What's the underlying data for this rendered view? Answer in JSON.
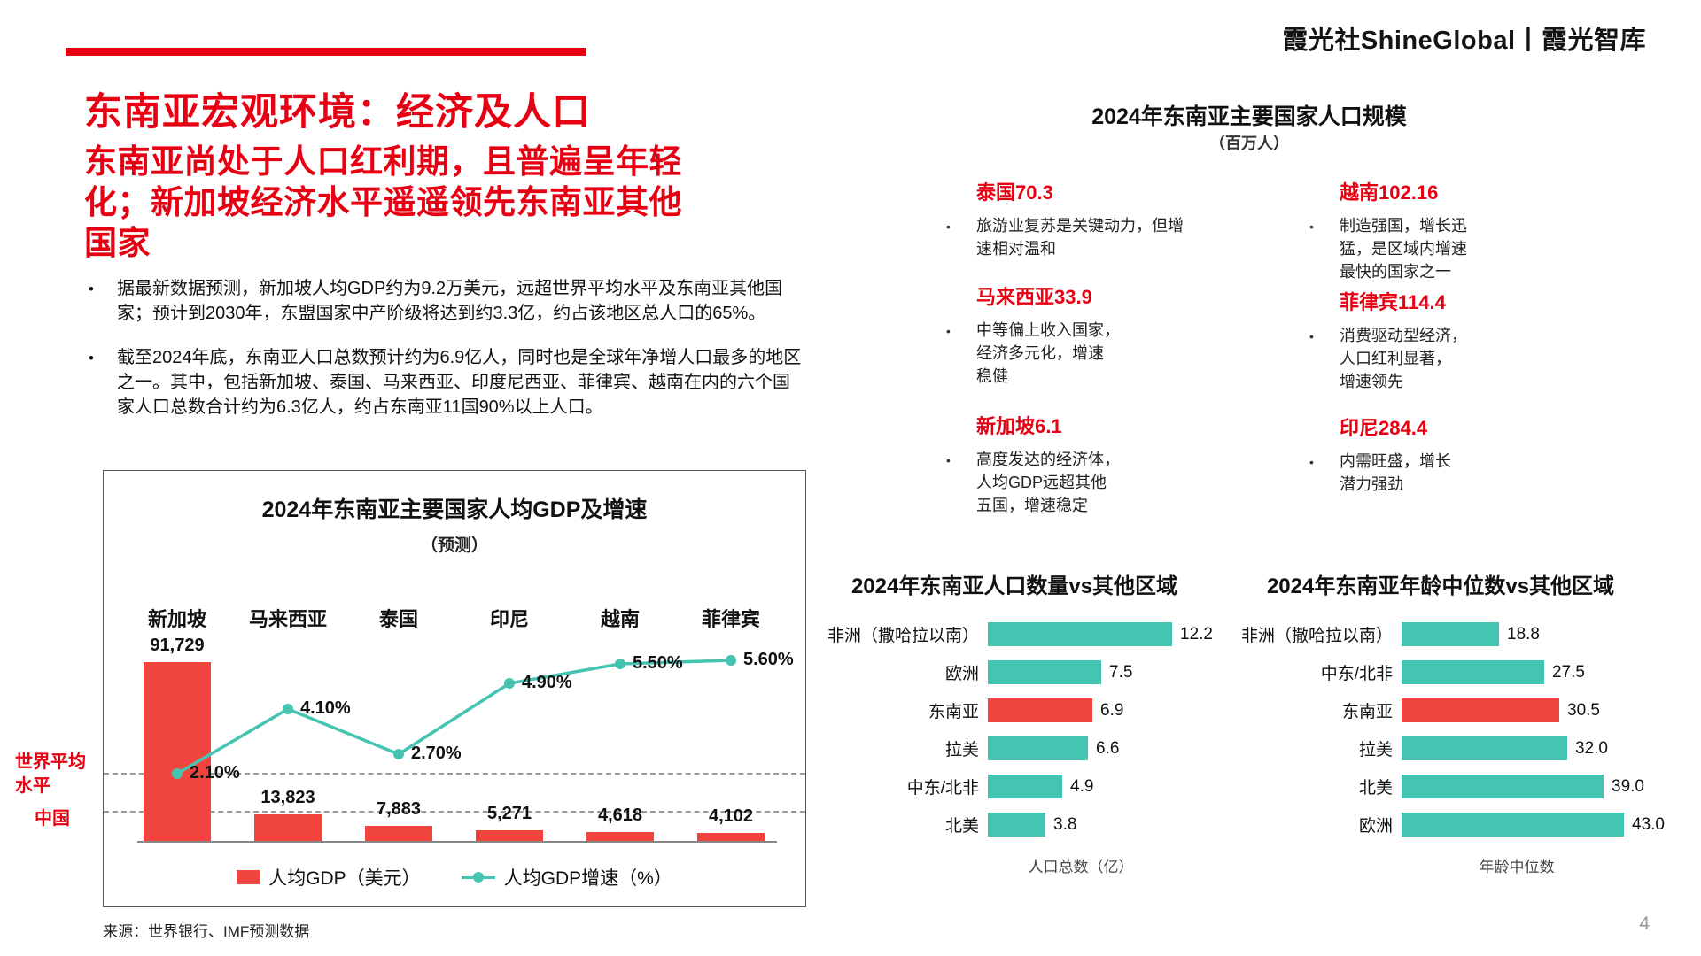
{
  "ui": {
    "bullet_char": "•"
  },
  "colors": {
    "accent_red": "#e60012",
    "bar_red": "#f0453f",
    "teal": "#45c4b2",
    "dash_gray": "#999999"
  },
  "brand": {
    "logo_text": "霞光社ShineGlobal丨霞光智库"
  },
  "page_number": "4",
  "source": "来源：世界银行、IMF预测数据",
  "header": {
    "title": "东南亚宏观环境：经济及人口",
    "subtitle": "东南亚尚处于人口红利期，且普遍呈年轻化；新加坡经济水平遥遥领先东南亚其他国家",
    "bullets": [
      "据最新数据预测，新加坡人均GDP约为9.2万美元，远超世界平均水平及东南亚其他国家；预计到2030年，东盟国家中产阶级将达到约3.3亿，约占该地区总人口的65%。",
      "截至2024年底，东南亚人口总数预计约为6.9亿人，同时也是全球年净增人口最多的地区之一。其中，包括新加坡、泰国、马来西亚、印度尼西亚、菲律宾、越南在内的六个国家人口总数合计约为6.3亿人，约占东南亚11国90%以上人口。"
    ]
  },
  "population_panel": {
    "title": "2024年东南亚主要国家人口规模",
    "unit": "（百万人）",
    "entries": [
      {
        "name": "泰国",
        "value": "70.3",
        "desc": "旅游业复苏是关键动力，但增\n速相对温和"
      },
      {
        "name": "马来西亚",
        "value": "33.9",
        "desc": "中等偏上收入国家，\n经济多元化，增速\n稳健"
      },
      {
        "name": "新加坡",
        "value": "6.1",
        "desc": "高度发达的经济体，\n人均GDP远超其他\n五国，增速稳定"
      },
      {
        "name": "越南",
        "value": "102.16",
        "desc": "制造强国，增长迅\n猛，是区域内增速\n最快的国家之一"
      },
      {
        "name": "菲律宾",
        "value": "114.4",
        "desc": "消费驱动型经济，\n人口红利显著，\n增速领先"
      },
      {
        "name": "印尼",
        "value": "284.4",
        "desc": "内需旺盛，增长\n潜力强劲"
      }
    ]
  },
  "chart_data": [
    {
      "type": "bar",
      "combo": "bar+line",
      "title": "2024年东南亚主要国家人均GDP及增速",
      "subtitle": "（预测）",
      "categories": [
        "新加坡",
        "马来西亚",
        "泰国",
        "印尼",
        "越南",
        "菲律宾"
      ],
      "series": [
        {
          "name": "人均GDP（美元）",
          "kind": "bar",
          "values": [
            91729,
            13823,
            7883,
            5271,
            4618,
            4102
          ],
          "labels": [
            "91,729",
            "13,823",
            "7,883",
            "5,271",
            "4,618",
            "4,102"
          ]
        },
        {
          "name": "人均GDP增速（%）",
          "kind": "line",
          "values": [
            2.1,
            4.1,
            2.7,
            4.9,
            5.5,
            5.6
          ],
          "labels": [
            "2.10%",
            "4.10%",
            "2.70%",
            "4.90%",
            "5.50%",
            "5.60%"
          ]
        }
      ],
      "reference_lines": [
        {
          "label": "世界平均水平"
        },
        {
          "label": "中国"
        }
      ]
    },
    {
      "type": "bar",
      "orientation": "horizontal",
      "title": "2024年东南亚人口数量vs其他区域",
      "categories": [
        "非洲（撒哈拉以南）",
        "欧洲",
        "东南亚",
        "拉美",
        "中东/北非",
        "北美"
      ],
      "values": [
        12.2,
        7.5,
        6.9,
        6.6,
        4.9,
        3.8
      ],
      "labels": [
        "12.2",
        "7.5",
        "6.9",
        "6.6",
        "4.9",
        "3.8"
      ],
      "highlight_index": 2,
      "highlight_category": "东南亚",
      "xlabel": "人口总数（亿）"
    },
    {
      "type": "bar",
      "orientation": "horizontal",
      "title": "2024年东南亚年龄中位数vs其他区域",
      "categories": [
        "非洲（撒哈拉以南）",
        "中东/北非",
        "东南亚",
        "拉美",
        "北美",
        "欧洲"
      ],
      "values": [
        18.8,
        27.5,
        30.5,
        32.0,
        39.0,
        43.0
      ],
      "labels": [
        "18.8",
        "27.5",
        "30.5",
        "32.0",
        "39.0",
        "43.0"
      ],
      "highlight_index": 2,
      "highlight_category": "东南亚",
      "xlabel": "年龄中位数"
    }
  ]
}
